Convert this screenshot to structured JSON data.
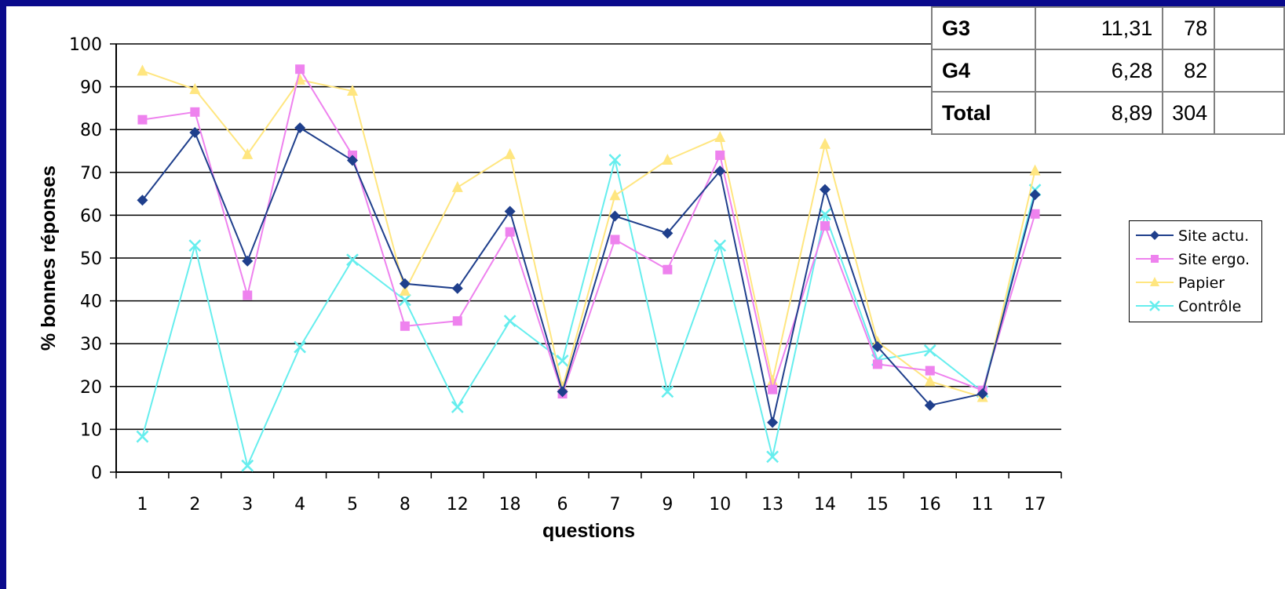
{
  "table": {
    "rows": [
      {
        "label": "G3",
        "value": "11,31",
        "n": "78",
        "extra": ""
      },
      {
        "label": "G4",
        "value": "6,28",
        "n": "82",
        "extra": ""
      },
      {
        "label": "Total",
        "value": "8,89",
        "n": "304",
        "extra": ""
      }
    ]
  },
  "chart_data": {
    "type": "line",
    "xlabel": "questions",
    "ylabel": "% bonnes réponses",
    "ylim": [
      0,
      100
    ],
    "yticks": [
      0,
      10,
      20,
      30,
      40,
      50,
      60,
      70,
      80,
      90,
      100
    ],
    "grid": "horizontal",
    "legend": "right",
    "categories": [
      "1",
      "2",
      "3",
      "4",
      "5",
      "8",
      "12",
      "18",
      "6",
      "7",
      "9",
      "10",
      "13",
      "14",
      "15",
      "16",
      "11",
      "17"
    ],
    "series": [
      {
        "name": "Site actu.",
        "color": "#1f3f8c",
        "marker": "diamond",
        "values": [
          63.5,
          79.3,
          49.3,
          80.4,
          72.8,
          44,
          42.9,
          60.9,
          18.8,
          59.8,
          55.8,
          70.3,
          11.6,
          66,
          29.3,
          15.6,
          18.3,
          64.8
        ]
      },
      {
        "name": "Site ergo.",
        "color": "#ee82ee",
        "marker": "square",
        "values": [
          82.3,
          84.1,
          41.3,
          94.1,
          74,
          34.1,
          35.3,
          56.1,
          18.3,
          54.3,
          47.3,
          74,
          19.3,
          57.5,
          25.2,
          23.7,
          19.1,
          60.3
        ]
      },
      {
        "name": "Papier",
        "color": "#ffe680",
        "marker": "triangle",
        "values": [
          93.7,
          89.4,
          74.2,
          91.6,
          89,
          42.3,
          66.5,
          74.2,
          19.8,
          64.6,
          72.9,
          78.2,
          21.3,
          76.6,
          30.4,
          21.2,
          17.5,
          70.4
        ]
      },
      {
        "name": "Contrôle",
        "color": "#66eeee",
        "marker": "x",
        "values": [
          8.3,
          52.9,
          1.5,
          29.2,
          49.6,
          40.2,
          15.2,
          35.3,
          26,
          72.9,
          18.8,
          52.9,
          3.6,
          60.2,
          26.2,
          28.4,
          18.8,
          65.9
        ]
      }
    ]
  }
}
